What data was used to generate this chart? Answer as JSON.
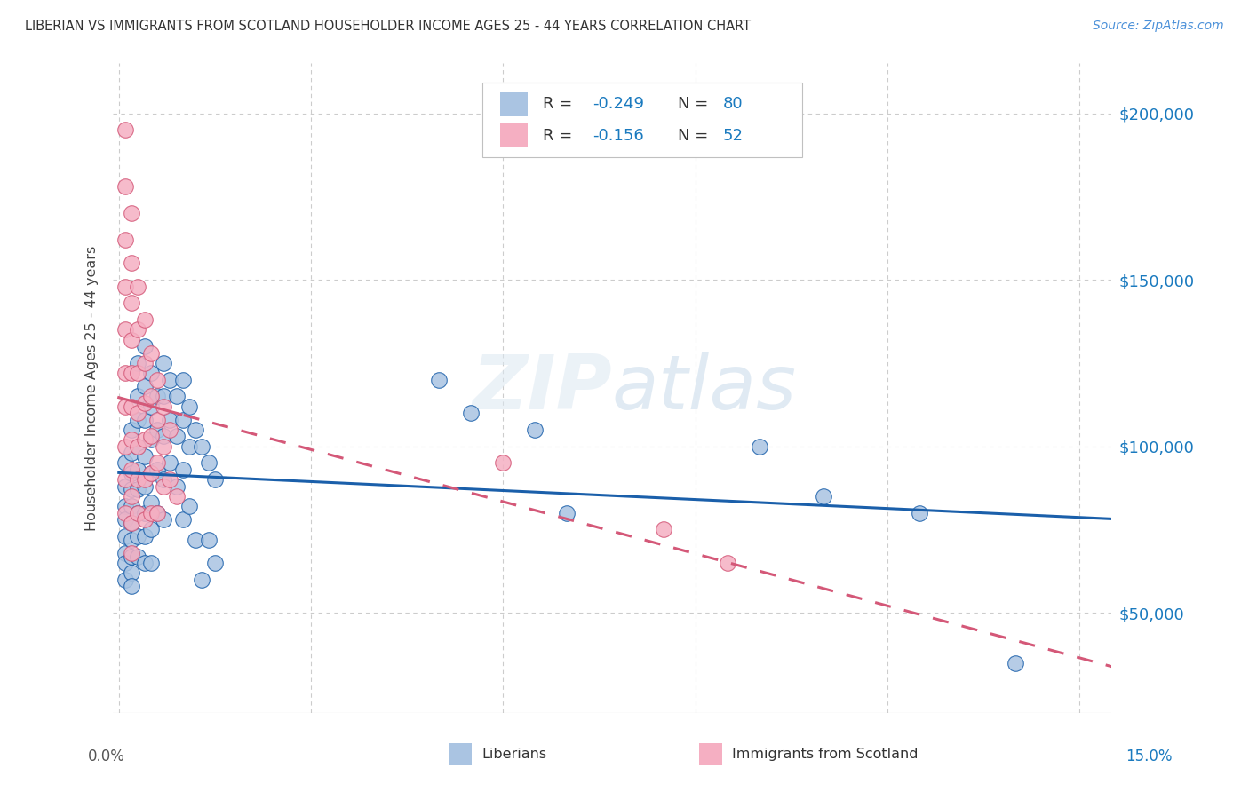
{
  "title": "LIBERIAN VS IMMIGRANTS FROM SCOTLAND HOUSEHOLDER INCOME AGES 25 - 44 YEARS CORRELATION CHART",
  "source": "Source: ZipAtlas.com",
  "ylabel": "Householder Income Ages 25 - 44 years",
  "y_ticks": [
    50000,
    100000,
    150000,
    200000
  ],
  "y_tick_labels": [
    "$50,000",
    "$100,000",
    "$150,000",
    "$200,000"
  ],
  "x_ticks": [
    0.0,
    0.03,
    0.06,
    0.09,
    0.12,
    0.15
  ],
  "blue_R": -0.249,
  "blue_N": 80,
  "pink_R": -0.156,
  "pink_N": 52,
  "blue_color": "#aac4e2",
  "pink_color": "#f5afc2",
  "blue_line_color": "#1a5faa",
  "pink_line_color": "#d45878",
  "watermark": "ZIPatlas",
  "ymin": 20000,
  "ymax": 215000,
  "xmin": -0.001,
  "xmax": 0.155,
  "blue_scatter_x": [
    0.001,
    0.001,
    0.001,
    0.001,
    0.001,
    0.001,
    0.001,
    0.001,
    0.002,
    0.002,
    0.002,
    0.002,
    0.002,
    0.002,
    0.002,
    0.002,
    0.002,
    0.002,
    0.003,
    0.003,
    0.003,
    0.003,
    0.003,
    0.003,
    0.003,
    0.003,
    0.003,
    0.004,
    0.004,
    0.004,
    0.004,
    0.004,
    0.004,
    0.004,
    0.004,
    0.005,
    0.005,
    0.005,
    0.005,
    0.005,
    0.005,
    0.005,
    0.006,
    0.006,
    0.006,
    0.006,
    0.007,
    0.007,
    0.007,
    0.007,
    0.007,
    0.008,
    0.008,
    0.008,
    0.009,
    0.009,
    0.009,
    0.01,
    0.01,
    0.01,
    0.01,
    0.011,
    0.011,
    0.011,
    0.012,
    0.012,
    0.013,
    0.013,
    0.014,
    0.014,
    0.015,
    0.015,
    0.05,
    0.055,
    0.065,
    0.07,
    0.1,
    0.11,
    0.125,
    0.14
  ],
  "blue_scatter_y": [
    95000,
    88000,
    82000,
    78000,
    73000,
    68000,
    65000,
    60000,
    105000,
    98000,
    92000,
    87000,
    82000,
    77000,
    72000,
    67000,
    62000,
    58000,
    125000,
    115000,
    108000,
    100000,
    93000,
    87000,
    80000,
    73000,
    67000,
    130000,
    118000,
    108000,
    97000,
    88000,
    80000,
    73000,
    65000,
    122000,
    112000,
    102000,
    92000,
    83000,
    75000,
    65000,
    115000,
    105000,
    93000,
    80000,
    125000,
    115000,
    103000,
    90000,
    78000,
    120000,
    108000,
    95000,
    115000,
    103000,
    88000,
    120000,
    108000,
    93000,
    78000,
    112000,
    100000,
    82000,
    105000,
    72000,
    100000,
    60000,
    95000,
    72000,
    90000,
    65000,
    120000,
    110000,
    105000,
    80000,
    100000,
    85000,
    80000,
    35000
  ],
  "pink_scatter_x": [
    0.001,
    0.001,
    0.001,
    0.001,
    0.001,
    0.001,
    0.001,
    0.001,
    0.001,
    0.001,
    0.002,
    0.002,
    0.002,
    0.002,
    0.002,
    0.002,
    0.002,
    0.002,
    0.002,
    0.002,
    0.002,
    0.003,
    0.003,
    0.003,
    0.003,
    0.003,
    0.003,
    0.003,
    0.004,
    0.004,
    0.004,
    0.004,
    0.004,
    0.004,
    0.005,
    0.005,
    0.005,
    0.005,
    0.005,
    0.006,
    0.006,
    0.006,
    0.006,
    0.007,
    0.007,
    0.007,
    0.008,
    0.008,
    0.009,
    0.06,
    0.085,
    0.095
  ],
  "pink_scatter_y": [
    195000,
    178000,
    162000,
    148000,
    135000,
    122000,
    112000,
    100000,
    90000,
    80000,
    170000,
    155000,
    143000,
    132000,
    122000,
    112000,
    102000,
    93000,
    85000,
    77000,
    68000,
    148000,
    135000,
    122000,
    110000,
    100000,
    90000,
    80000,
    138000,
    125000,
    113000,
    102000,
    90000,
    78000,
    128000,
    115000,
    103000,
    92000,
    80000,
    120000,
    108000,
    95000,
    80000,
    112000,
    100000,
    88000,
    105000,
    90000,
    85000,
    95000,
    75000,
    65000
  ]
}
